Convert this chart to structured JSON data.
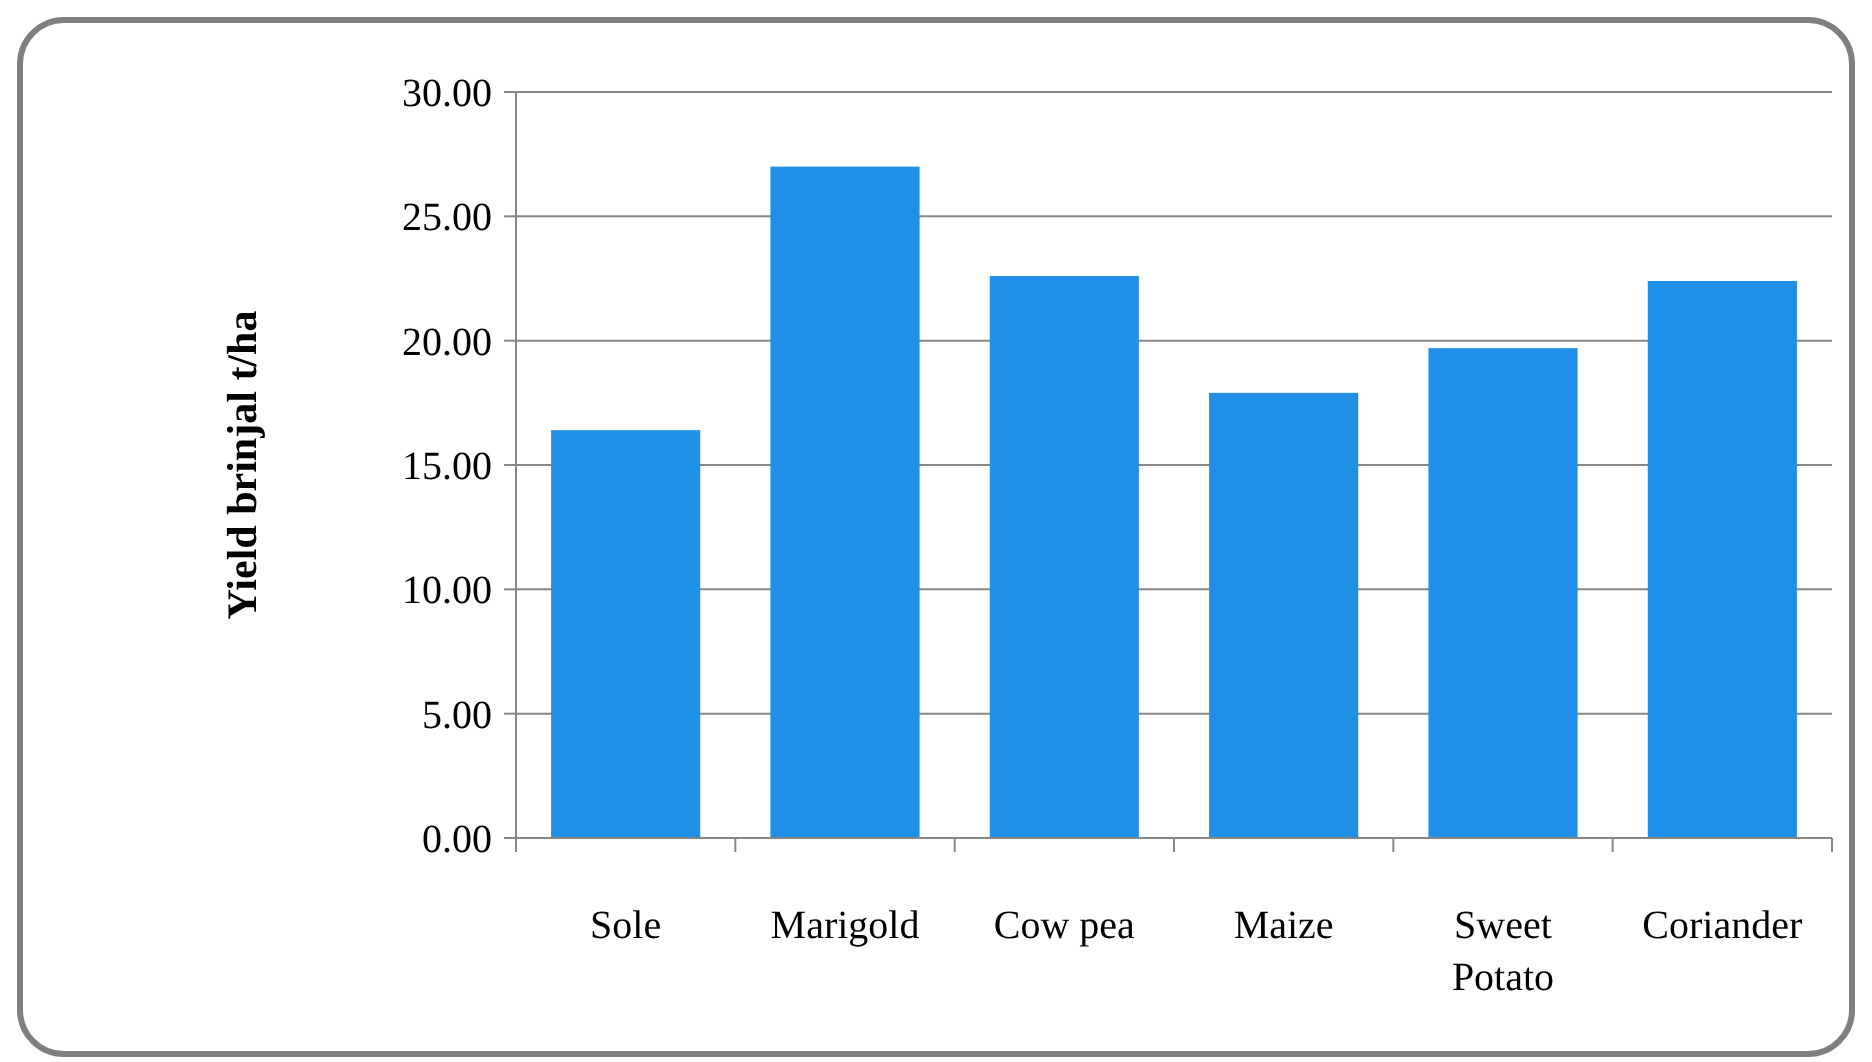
{
  "chart_data": {
    "type": "bar",
    "ylabel": "Yield brinjal t/ha",
    "categories": [
      "Sole",
      "Marigold",
      "Cow pea",
      "Maize",
      "Sweet Potato",
      "Coriander"
    ],
    "values": [
      16.4,
      27.0,
      22.6,
      17.9,
      19.7,
      22.4
    ],
    "color": "#1f8fe8",
    "ylim": [
      0,
      30
    ],
    "yticks": [
      {
        "value": 0,
        "label": "0.00"
      },
      {
        "value": 5,
        "label": "5.00"
      },
      {
        "value": 10,
        "label": "10.00"
      },
      {
        "value": 15,
        "label": "15.00"
      },
      {
        "value": 20,
        "label": "20.00"
      },
      {
        "value": 25,
        "label": "25.00"
      },
      {
        "value": 30,
        "label": "30.00"
      }
    ],
    "grid": "y"
  }
}
